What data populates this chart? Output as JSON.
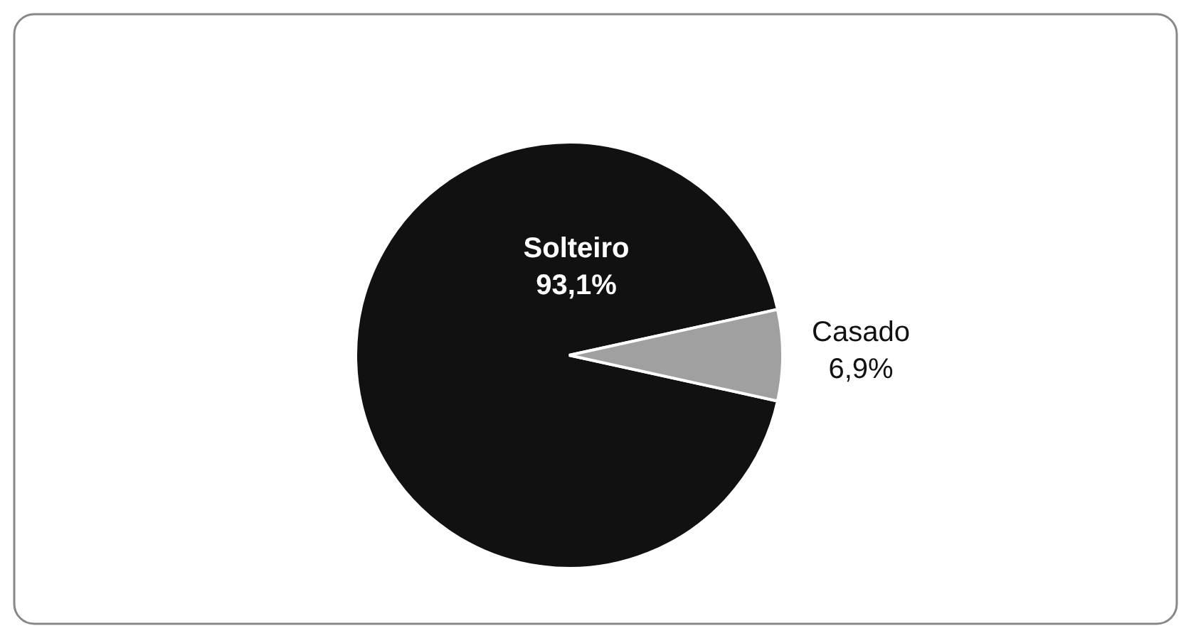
{
  "chart_data": {
    "type": "pie",
    "categories": [
      "Solteiro",
      "Casado"
    ],
    "values": [
      93.1,
      6.9
    ],
    "colors": [
      "#111111",
      "#a0a0a0"
    ],
    "value_labels": [
      "93,1%",
      "6,9%"
    ]
  }
}
